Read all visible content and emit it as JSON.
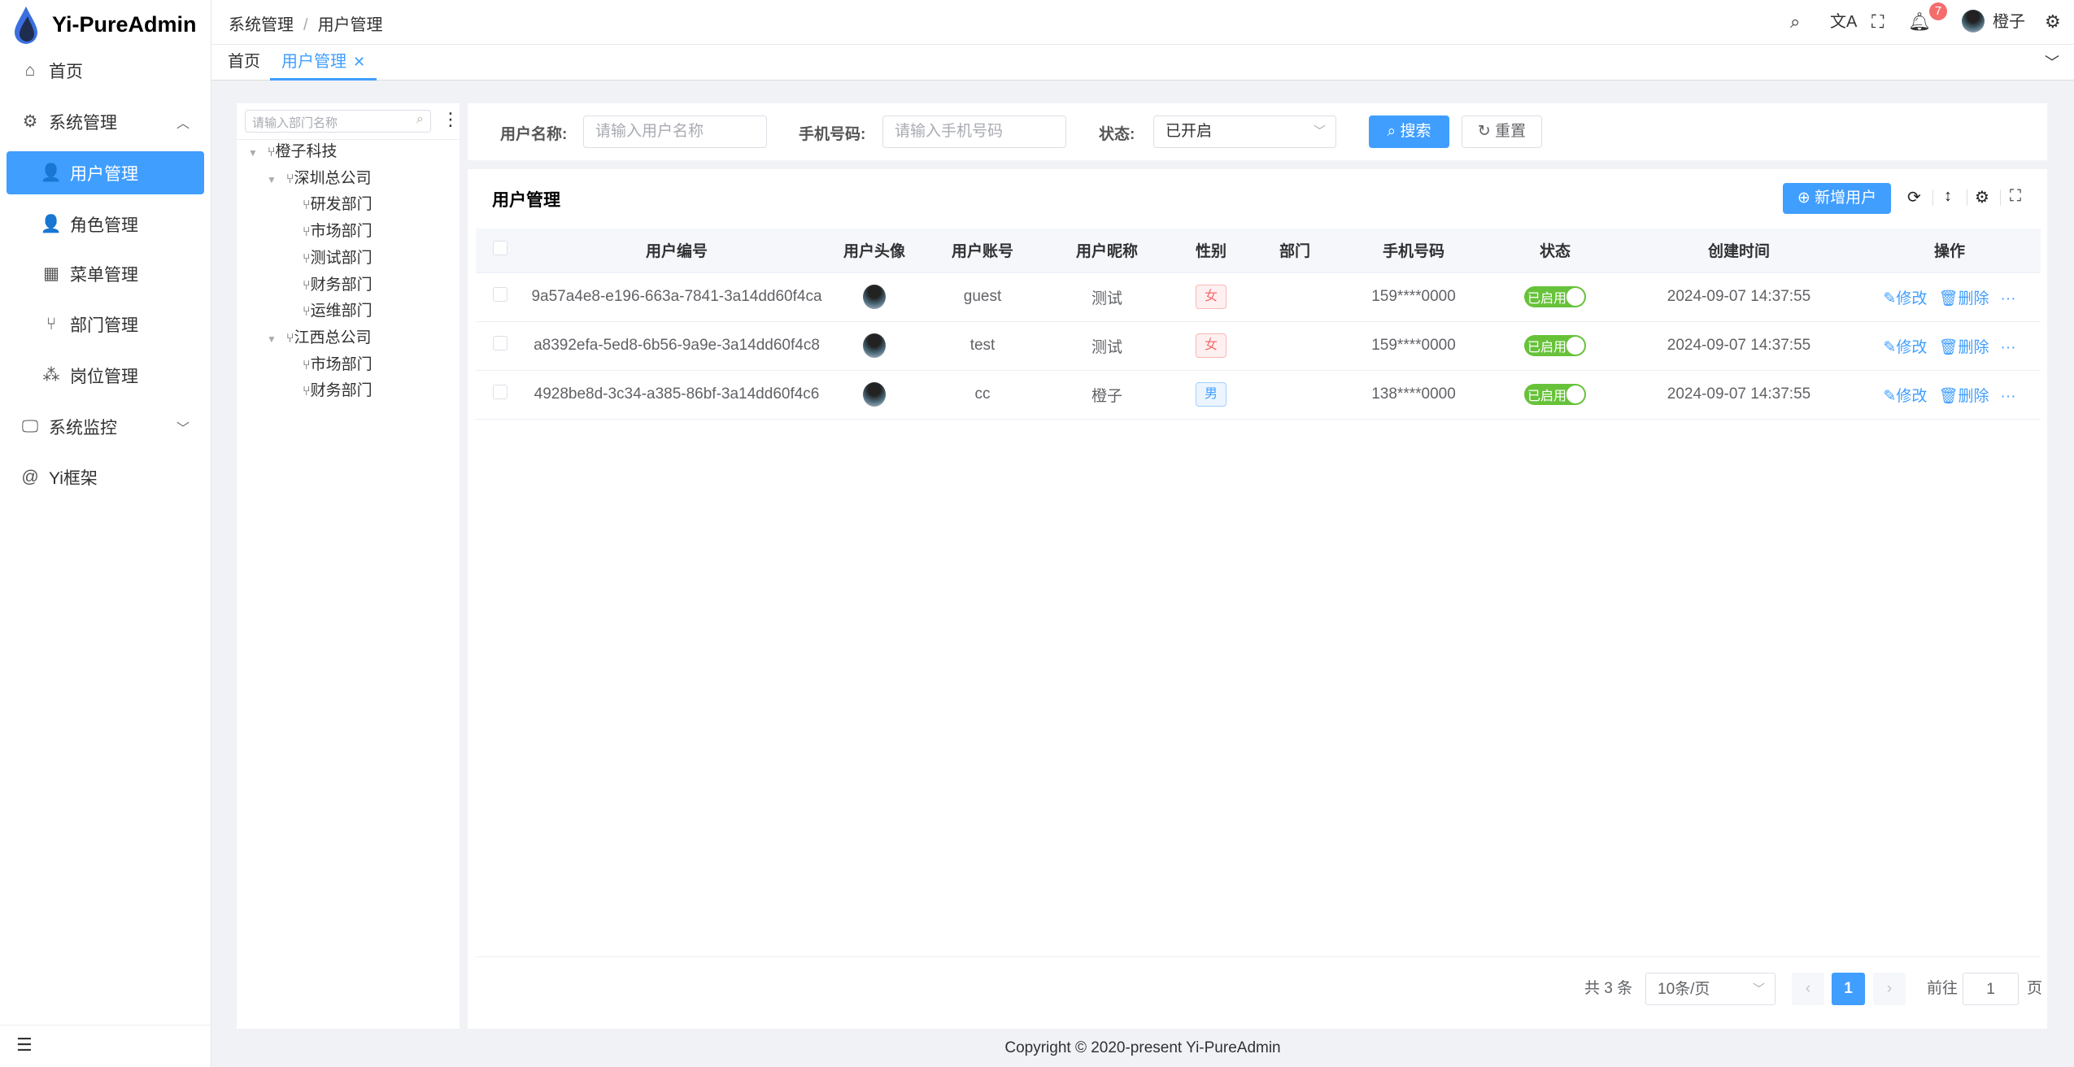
{
  "app": {
    "title": "Yi-PureAdmin"
  },
  "sidebar": {
    "items": [
      {
        "label": "首页",
        "icon": "home-icon"
      },
      {
        "label": "系统管理",
        "icon": "gear-icon",
        "expanded": true
      },
      {
        "label": "用户管理",
        "icon": "user-lock-icon",
        "active": true
      },
      {
        "label": "角色管理",
        "icon": "user-role-icon"
      },
      {
        "label": "菜单管理",
        "icon": "grid-icon"
      },
      {
        "label": "部门管理",
        "icon": "branch-icon"
      },
      {
        "label": "岗位管理",
        "icon": "network-icon"
      },
      {
        "label": "系统监控",
        "icon": "monitor-icon",
        "expanded": false
      },
      {
        "label": "Yi框架",
        "icon": "at-icon"
      }
    ]
  },
  "header": {
    "breadcrumb": [
      "系统管理",
      "用户管理"
    ],
    "notification_count": "7",
    "username": "橙子"
  },
  "tabs": [
    {
      "label": "首页"
    },
    {
      "label": "用户管理",
      "active": true
    }
  ],
  "tree": {
    "search_placeholder": "请输入部门名称",
    "nodes": [
      {
        "label": "橙子科技",
        "level": 1,
        "expanded": true
      },
      {
        "label": "深圳总公司",
        "level": 2,
        "expanded": true
      },
      {
        "label": "研发部门",
        "level": 3
      },
      {
        "label": "市场部门",
        "level": 3
      },
      {
        "label": "测试部门",
        "level": 3
      },
      {
        "label": "财务部门",
        "level": 3
      },
      {
        "label": "运维部门",
        "level": 3
      },
      {
        "label": "江西总公司",
        "level": 2,
        "expanded": true
      },
      {
        "label": "市场部门",
        "level": 3
      },
      {
        "label": "财务部门",
        "level": 3
      }
    ]
  },
  "filter": {
    "username_label": "用户名称:",
    "username_placeholder": "请输入用户名称",
    "phone_label": "手机号码:",
    "phone_placeholder": "请输入手机号码",
    "status_label": "状态:",
    "status_value": "已开启",
    "search": "搜索",
    "reset": "重置"
  },
  "table": {
    "title": "用户管理",
    "add": "新增用户",
    "columns": [
      "用户编号",
      "用户头像",
      "用户账号",
      "用户昵称",
      "性别",
      "部门",
      "手机号码",
      "状态",
      "创建时间",
      "操作"
    ],
    "rows": [
      {
        "id": "9a57a4e8-e196-663a-7841-3a14dd60f4ca",
        "account": "guest",
        "nickname": "测试",
        "gender": "女",
        "dept": "",
        "phone": "159****0000",
        "status": "已启用",
        "created": "2024-09-07 14:37:55"
      },
      {
        "id": "a8392efa-5ed8-6b56-9a9e-3a14dd60f4c8",
        "account": "test",
        "nickname": "测试",
        "gender": "女",
        "dept": "",
        "phone": "159****0000",
        "status": "已启用",
        "created": "2024-09-07 14:37:55"
      },
      {
        "id": "4928be8d-3c34-a385-86bf-3a14dd60f4c6",
        "account": "cc",
        "nickname": "橙子",
        "gender": "男",
        "dept": "",
        "phone": "138****0000",
        "status": "已启用",
        "created": "2024-09-07 14:37:55"
      }
    ],
    "edit": "修改",
    "delete": "删除"
  },
  "pagination": {
    "total": "共 3 条",
    "page_size": "10条/页",
    "current": "1",
    "goto_label": "前往",
    "goto_value": "1",
    "page_suffix": "页"
  },
  "footer": "Copyright © 2020-present Yi-PureAdmin",
  "colors": {
    "primary": "#409eff",
    "success": "#67c23a",
    "danger": "#f56c6c"
  }
}
